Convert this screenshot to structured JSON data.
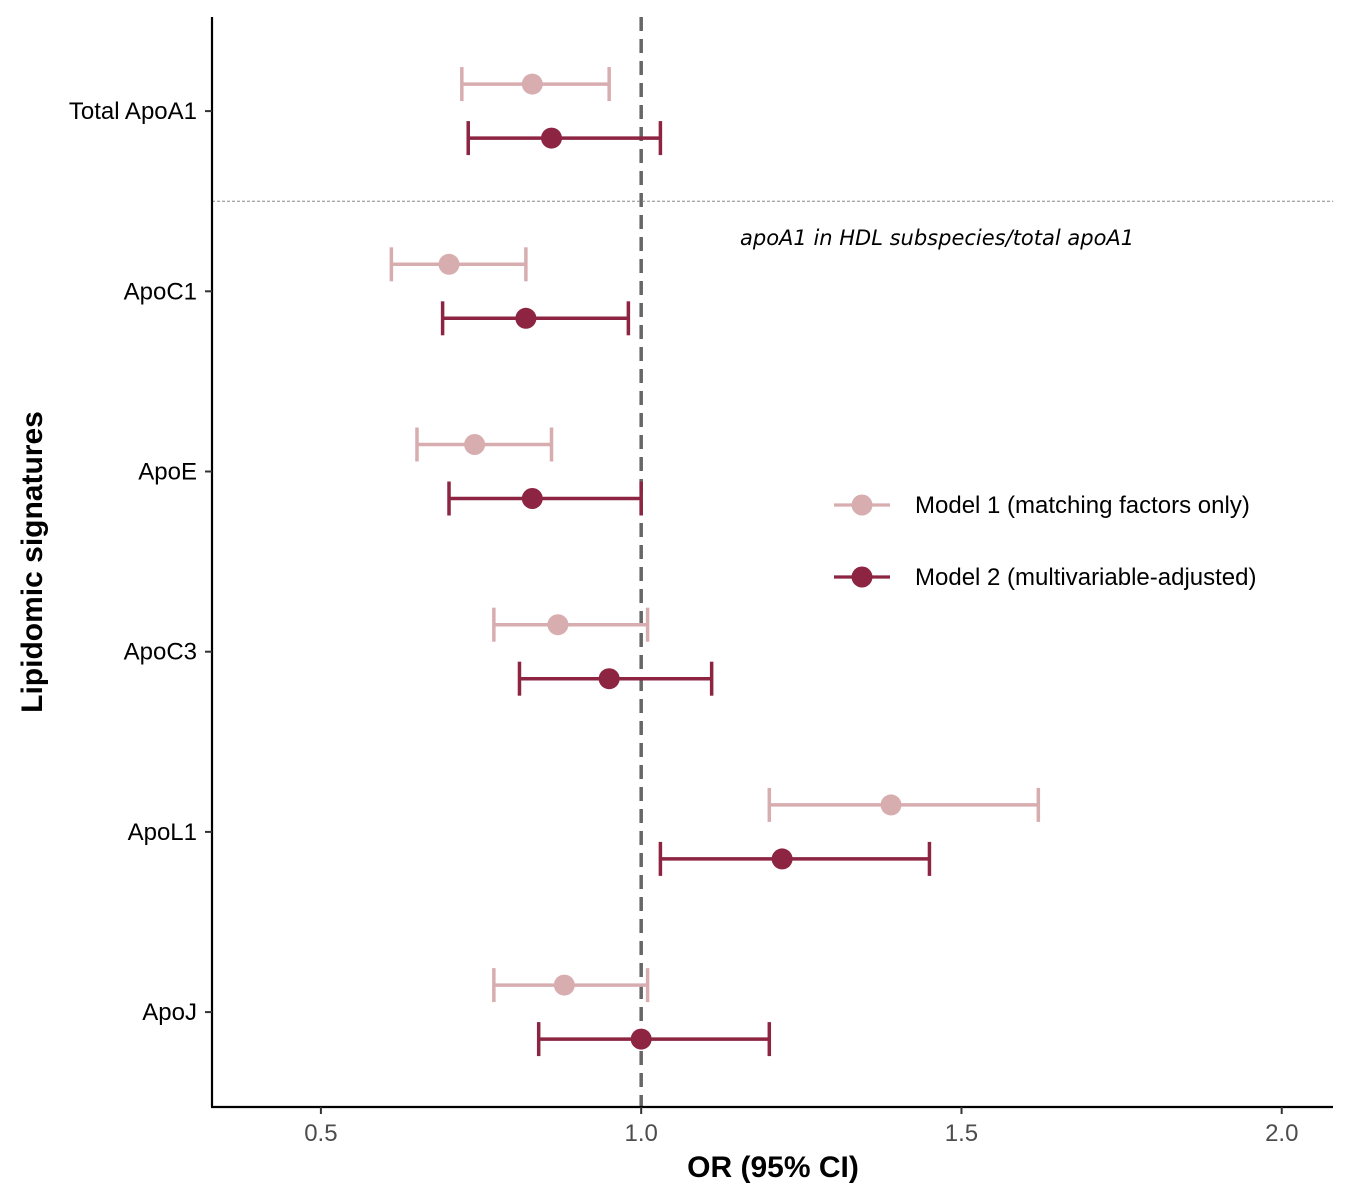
{
  "chart_data": {
    "type": "forest",
    "xlabel": "OR (95% CI)",
    "ylabel": "Lipidomic signatures",
    "xlim": [
      0.33,
      2.08
    ],
    "xticks": [
      0.5,
      1.0,
      1.5,
      2.0
    ],
    "xtick_labels": [
      "0.5",
      "1.0",
      "1.5",
      "2.0"
    ],
    "reference_line": 1.0,
    "categories": [
      "Total ApoA1",
      "ApoC1",
      "ApoE",
      "ApoC3",
      "ApoL1",
      "ApoJ"
    ],
    "separator_after": "Total ApoA1",
    "annotation": "apoA1 in HDL subspecies/total apoA1",
    "legend_position": "right",
    "series": [
      {
        "name": "Model 1 (matching factors only)",
        "color": "#d8adb0",
        "points": [
          {
            "category": "Total ApoA1",
            "or": 0.83,
            "lower": 0.72,
            "upper": 0.95
          },
          {
            "category": "ApoC1",
            "or": 0.7,
            "lower": 0.61,
            "upper": 0.82
          },
          {
            "category": "ApoE",
            "or": 0.74,
            "lower": 0.65,
            "upper": 0.86
          },
          {
            "category": "ApoC3",
            "or": 0.87,
            "lower": 0.77,
            "upper": 1.01
          },
          {
            "category": "ApoL1",
            "or": 1.39,
            "lower": 1.2,
            "upper": 1.62
          },
          {
            "category": "ApoJ",
            "or": 0.88,
            "lower": 0.77,
            "upper": 1.01
          }
        ]
      },
      {
        "name": "Model 2 (multivariable-adjusted)",
        "color": "#8c2442",
        "points": [
          {
            "category": "Total ApoA1",
            "or": 0.86,
            "lower": 0.73,
            "upper": 1.03
          },
          {
            "category": "ApoC1",
            "or": 0.82,
            "lower": 0.69,
            "upper": 0.98
          },
          {
            "category": "ApoE",
            "or": 0.83,
            "lower": 0.7,
            "upper": 1.0
          },
          {
            "category": "ApoC3",
            "or": 0.95,
            "lower": 0.81,
            "upper": 1.11
          },
          {
            "category": "ApoL1",
            "or": 1.22,
            "lower": 1.03,
            "upper": 1.45
          },
          {
            "category": "ApoJ",
            "or": 1.0,
            "lower": 0.84,
            "upper": 1.2
          }
        ]
      }
    ]
  }
}
